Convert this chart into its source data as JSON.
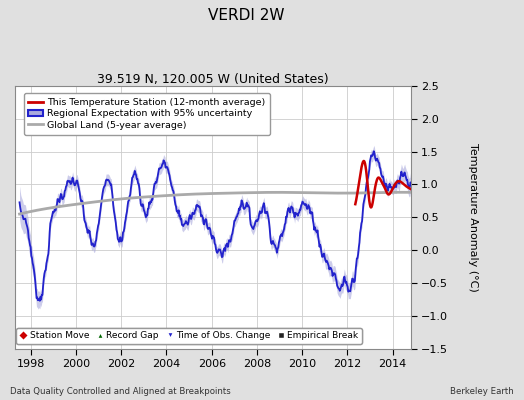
{
  "title": "VERDI 2W",
  "subtitle": "39.519 N, 120.005 W (United States)",
  "ylabel": "Temperature Anomaly (°C)",
  "xlabel_bottom_left": "Data Quality Controlled and Aligned at Breakpoints",
  "xlabel_bottom_right": "Berkeley Earth",
  "ylim": [
    -1.5,
    2.5
  ],
  "xlim": [
    1997.3,
    2014.8
  ],
  "xticks": [
    1998,
    2000,
    2002,
    2004,
    2006,
    2008,
    2010,
    2012,
    2014
  ],
  "yticks": [
    -1.5,
    -1.0,
    -0.5,
    0.0,
    0.5,
    1.0,
    1.5,
    2.0,
    2.5
  ],
  "bg_color": "#e8e8e8",
  "plot_bg": "#ffffff",
  "grid_color": "#cccccc",
  "fig_bg": "#e0e0e0",
  "regional_color": "#2222cc",
  "regional_fill": "#aaaadd",
  "station_color": "#cc0000",
  "global_color": "#aaaaaa",
  "regional_lw": 1.3,
  "station_lw": 1.8,
  "global_lw": 2.0,
  "title_fontsize": 11,
  "subtitle_fontsize": 9,
  "tick_fontsize": 8,
  "ylabel_fontsize": 8
}
